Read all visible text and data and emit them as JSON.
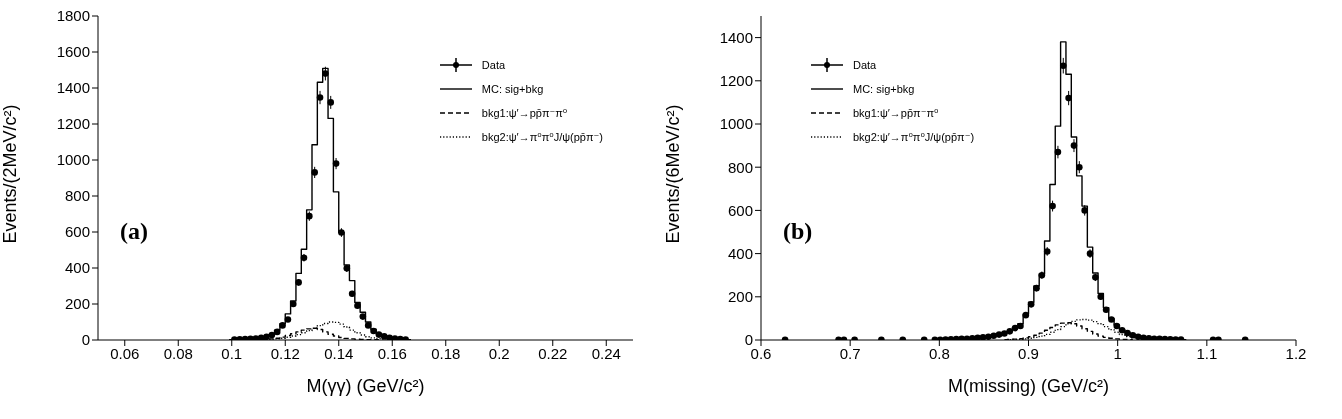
{
  "chart_data": [
    {
      "type": "scatter",
      "xlabel": "M(γγ) (GeV/c²)",
      "ylabel": "Events/(2MeV/c²)",
      "xlim": [
        0.05,
        0.25
      ],
      "xticks": [
        0.06,
        0.08,
        0.1,
        0.12,
        0.14,
        0.16,
        0.18,
        0.2,
        0.22,
        0.24
      ],
      "ylim": [
        0,
        1800
      ],
      "yticks": [
        0,
        200,
        400,
        600,
        800,
        1000,
        1200,
        1400,
        1600,
        1800
      ],
      "grid": false,
      "legend": "top right",
      "annotations": [
        "(a)"
      ],
      "series": [
        {
          "name": "Data",
          "marker": "circle",
          "color": "#000000",
          "x": [
            0.101,
            0.103,
            0.105,
            0.107,
            0.109,
            0.111,
            0.113,
            0.115,
            0.117,
            0.119,
            0.121,
            0.123,
            0.125,
            0.127,
            0.129,
            0.131,
            0.133,
            0.135,
            0.137,
            0.139,
            0.141,
            0.143,
            0.145,
            0.147,
            0.149,
            0.151,
            0.153,
            0.155,
            0.157,
            0.159,
            0.161,
            0.163,
            0.165
          ],
          "values": [
            3,
            4,
            5,
            6,
            8,
            12,
            18,
            28,
            45,
            81,
            114,
            200,
            320,
            457,
            688,
            931,
            1347,
            1480,
            1320,
            980,
            597,
            398,
            257,
            190,
            130,
            81,
            50,
            30,
            20,
            12,
            8,
            5,
            3
          ],
          "errors": [
            null,
            null,
            null,
            null,
            null,
            null,
            null,
            5,
            7,
            9,
            11,
            14,
            18,
            21,
            26,
            31,
            37,
            38,
            36,
            31,
            24,
            20,
            16,
            14,
            11,
            9,
            7,
            5,
            null,
            null,
            null,
            null,
            null
          ]
        },
        {
          "name": "MC: sig+bkg",
          "type": "step",
          "line_style": "solid",
          "color": "#000000",
          "x": [
            0.099,
            0.101,
            0.103,
            0.105,
            0.107,
            0.109,
            0.111,
            0.113,
            0.115,
            0.117,
            0.119,
            0.121,
            0.123,
            0.125,
            0.127,
            0.129,
            0.131,
            0.133,
            0.135,
            0.137,
            0.139,
            0.141,
            0.143,
            0.145,
            0.147,
            0.149,
            0.151,
            0.153,
            0.155,
            0.157,
            0.159,
            0.161,
            0.163,
            0.165,
            0.167
          ],
          "values": [
            2,
            3,
            4,
            5,
            7,
            9,
            13,
            20,
            30,
            55,
            90,
            145,
            217,
            370,
            504,
            723,
            1085,
            1432,
            1509,
            1231,
            823,
            597,
            417,
            330,
            208,
            154,
            100,
            60,
            35,
            22,
            14,
            9,
            6,
            3,
            2
          ]
        },
        {
          "name": "bkg1:ψ′→pp̄π⁻π⁰",
          "type": "step",
          "line_style": "dashed",
          "color": "#000000",
          "x": [
            0.111,
            0.113,
            0.115,
            0.117,
            0.119,
            0.121,
            0.123,
            0.125,
            0.127,
            0.129,
            0.131,
            0.133,
            0.135,
            0.137,
            0.139,
            0.141,
            0.143,
            0.145,
            0.147,
            0.149,
            0.151,
            0.153,
            0.155
          ],
          "values": [
            2,
            4,
            6,
            10,
            16,
            25,
            35,
            45,
            55,
            62,
            65,
            58,
            45,
            32,
            22,
            14,
            9,
            6,
            4,
            3,
            2,
            1,
            1
          ]
        },
        {
          "name": "bkg2:ψ′→π⁰π⁰J/ψ(pp̄π⁻)",
          "type": "step",
          "line_style": "dotted",
          "color": "#000000",
          "x": [
            0.113,
            0.115,
            0.117,
            0.119,
            0.121,
            0.123,
            0.125,
            0.127,
            0.129,
            0.131,
            0.133,
            0.135,
            0.137,
            0.139,
            0.141,
            0.143,
            0.145,
            0.147,
            0.149,
            0.151,
            0.153,
            0.155,
            0.157,
            0.159,
            0.161
          ],
          "values": [
            2,
            4,
            6,
            10,
            15,
            22,
            30,
            40,
            52,
            65,
            80,
            92,
            100,
            98,
            88,
            72,
            55,
            40,
            28,
            18,
            12,
            8,
            5,
            3,
            2
          ]
        }
      ]
    },
    {
      "type": "scatter",
      "xlabel": "M(missing) (GeV/c²)",
      "ylabel": "Events/(6MeV/c²)",
      "xlim": [
        0.6,
        1.2
      ],
      "xticks": [
        0.6,
        0.7,
        0.8,
        0.9,
        1,
        1.1,
        1.2
      ],
      "ylim": [
        0,
        1500
      ],
      "yticks": [
        0,
        200,
        400,
        600,
        800,
        1000,
        1200,
        1400
      ],
      "grid": false,
      "legend": "top left",
      "annotations": [
        "(b)"
      ],
      "series": [
        {
          "name": "Data",
          "marker": "circle",
          "color": "#000000",
          "x": [
            0.627,
            0.687,
            0.693,
            0.705,
            0.735,
            0.759,
            0.783,
            0.795,
            0.801,
            0.807,
            0.813,
            0.819,
            0.825,
            0.831,
            0.837,
            0.843,
            0.849,
            0.855,
            0.861,
            0.867,
            0.873,
            0.879,
            0.885,
            0.891,
            0.897,
            0.903,
            0.909,
            0.915,
            0.921,
            0.927,
            0.933,
            0.939,
            0.945,
            0.951,
            0.957,
            0.963,
            0.969,
            0.975,
            0.981,
            0.987,
            0.993,
            0.999,
            1.005,
            1.011,
            1.017,
            1.023,
            1.029,
            1.035,
            1.041,
            1.047,
            1.053,
            1.059,
            1.065,
            1.071,
            1.107,
            1.113,
            1.143
          ],
          "values": [
            1,
            1,
            1,
            1,
            1,
            1,
            1,
            1,
            1,
            2,
            3,
            4,
            5,
            6,
            8,
            10,
            12,
            15,
            20,
            25,
            30,
            40,
            55,
            65,
            115,
            165,
            240,
            300,
            410,
            620,
            870,
            1270,
            1120,
            900,
            800,
            600,
            400,
            290,
            200,
            140,
            95,
            65,
            45,
            32,
            22,
            15,
            10,
            8,
            6,
            5,
            4,
            3,
            2,
            2,
            1,
            1,
            1
          ],
          "errors": [
            null,
            null,
            null,
            null,
            null,
            null,
            null,
            null,
            null,
            null,
            null,
            null,
            null,
            null,
            null,
            null,
            null,
            4,
            4,
            5,
            5,
            6,
            7,
            8,
            11,
            13,
            15,
            17,
            20,
            25,
            29,
            36,
            33,
            30,
            28,
            24,
            20,
            17,
            14,
            12,
            10,
            8,
            7,
            6,
            5,
            4,
            null,
            null,
            null,
            null,
            null,
            null,
            null,
            null,
            null,
            null,
            null
          ]
        },
        {
          "name": "MC: sig+bkg",
          "type": "step",
          "line_style": "solid",
          "color": "#000000",
          "x": [
            0.801,
            0.807,
            0.813,
            0.819,
            0.825,
            0.831,
            0.837,
            0.843,
            0.849,
            0.855,
            0.861,
            0.867,
            0.873,
            0.879,
            0.885,
            0.891,
            0.897,
            0.903,
            0.909,
            0.915,
            0.921,
            0.927,
            0.933,
            0.939,
            0.945,
            0.951,
            0.957,
            0.963,
            0.969,
            0.975,
            0.981,
            0.987,
            0.993,
            0.999,
            1.005,
            1.011,
            1.017,
            1.023,
            1.029,
            1.035,
            1.041,
            1.047,
            1.053,
            1.059,
            1.065,
            1.071,
            1.077
          ],
          "values": [
            2,
            3,
            3,
            4,
            5,
            7,
            9,
            11,
            13,
            17,
            22,
            27,
            33,
            42,
            58,
            75,
            120,
            175,
            250,
            306,
            458,
            720,
            990,
            1380,
            1230,
            940,
            760,
            620,
            430,
            310,
            215,
            150,
            100,
            70,
            48,
            34,
            24,
            16,
            11,
            8,
            6,
            5,
            4,
            3,
            2,
            2,
            1
          ]
        },
        {
          "name": "bkg1:ψ′→pp̄π⁻π⁰",
          "type": "step",
          "line_style": "dashed",
          "color": "#000000",
          "x": [
            0.873,
            0.879,
            0.885,
            0.891,
            0.897,
            0.903,
            0.909,
            0.915,
            0.921,
            0.927,
            0.933,
            0.939,
            0.945,
            0.951,
            0.957,
            0.963,
            0.969,
            0.975,
            0.981,
            0.987,
            0.993,
            0.999,
            1.005,
            1.011,
            1.017
          ],
          "values": [
            1,
            2,
            4,
            6,
            10,
            15,
            22,
            32,
            45,
            58,
            70,
            78,
            80,
            75,
            65,
            52,
            40,
            28,
            18,
            12,
            8,
            5,
            3,
            2,
            1
          ]
        },
        {
          "name": "bkg2:ψ′→π⁰π⁰J/ψ(pp̄π⁻)",
          "type": "step",
          "line_style": "dotted",
          "color": "#000000",
          "x": [
            0.879,
            0.885,
            0.891,
            0.897,
            0.903,
            0.909,
            0.915,
            0.921,
            0.927,
            0.933,
            0.939,
            0.945,
            0.951,
            0.957,
            0.963,
            0.969,
            0.975,
            0.981,
            0.987,
            0.993,
            0.999,
            1.005,
            1.011,
            1.017,
            1.023,
            1.029,
            1.035
          ],
          "values": [
            1,
            2,
            3,
            5,
            8,
            12,
            18,
            26,
            36,
            48,
            62,
            75,
            86,
            93,
            95,
            92,
            85,
            75,
            62,
            48,
            36,
            25,
            16,
            10,
            6,
            3,
            2
          ]
        }
      ]
    }
  ]
}
